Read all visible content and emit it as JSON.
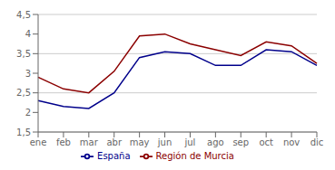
{
  "chart_data": {
    "type": "line",
    "categories": [
      "ene",
      "feb",
      "mar",
      "abr",
      "may",
      "jun",
      "jul",
      "ago",
      "sep",
      "oct",
      "nov",
      "dic"
    ],
    "series": [
      {
        "name": "España",
        "color": "#00008B",
        "values": [
          2.3,
          2.15,
          2.1,
          2.5,
          3.4,
          3.55,
          3.5,
          3.2,
          3.2,
          3.6,
          3.55,
          3.2
        ]
      },
      {
        "name": "Región de Murcia",
        "color": "#8B0000",
        "values": [
          2.9,
          2.6,
          2.5,
          3.05,
          3.95,
          4.0,
          3.75,
          3.6,
          3.45,
          3.8,
          3.7,
          3.25
        ]
      }
    ],
    "ylim": [
      1.5,
      4.5
    ],
    "yticks": [
      {
        "value": 1.5,
        "label": "1,5"
      },
      2,
      {
        "value": 2.5,
        "label": "2,5"
      },
      3,
      {
        "value": 3.5,
        "label": "3,5"
      },
      4,
      {
        "value": 4.5,
        "label": "4,5"
      }
    ],
    "grid": true,
    "legend": "bottom"
  }
}
